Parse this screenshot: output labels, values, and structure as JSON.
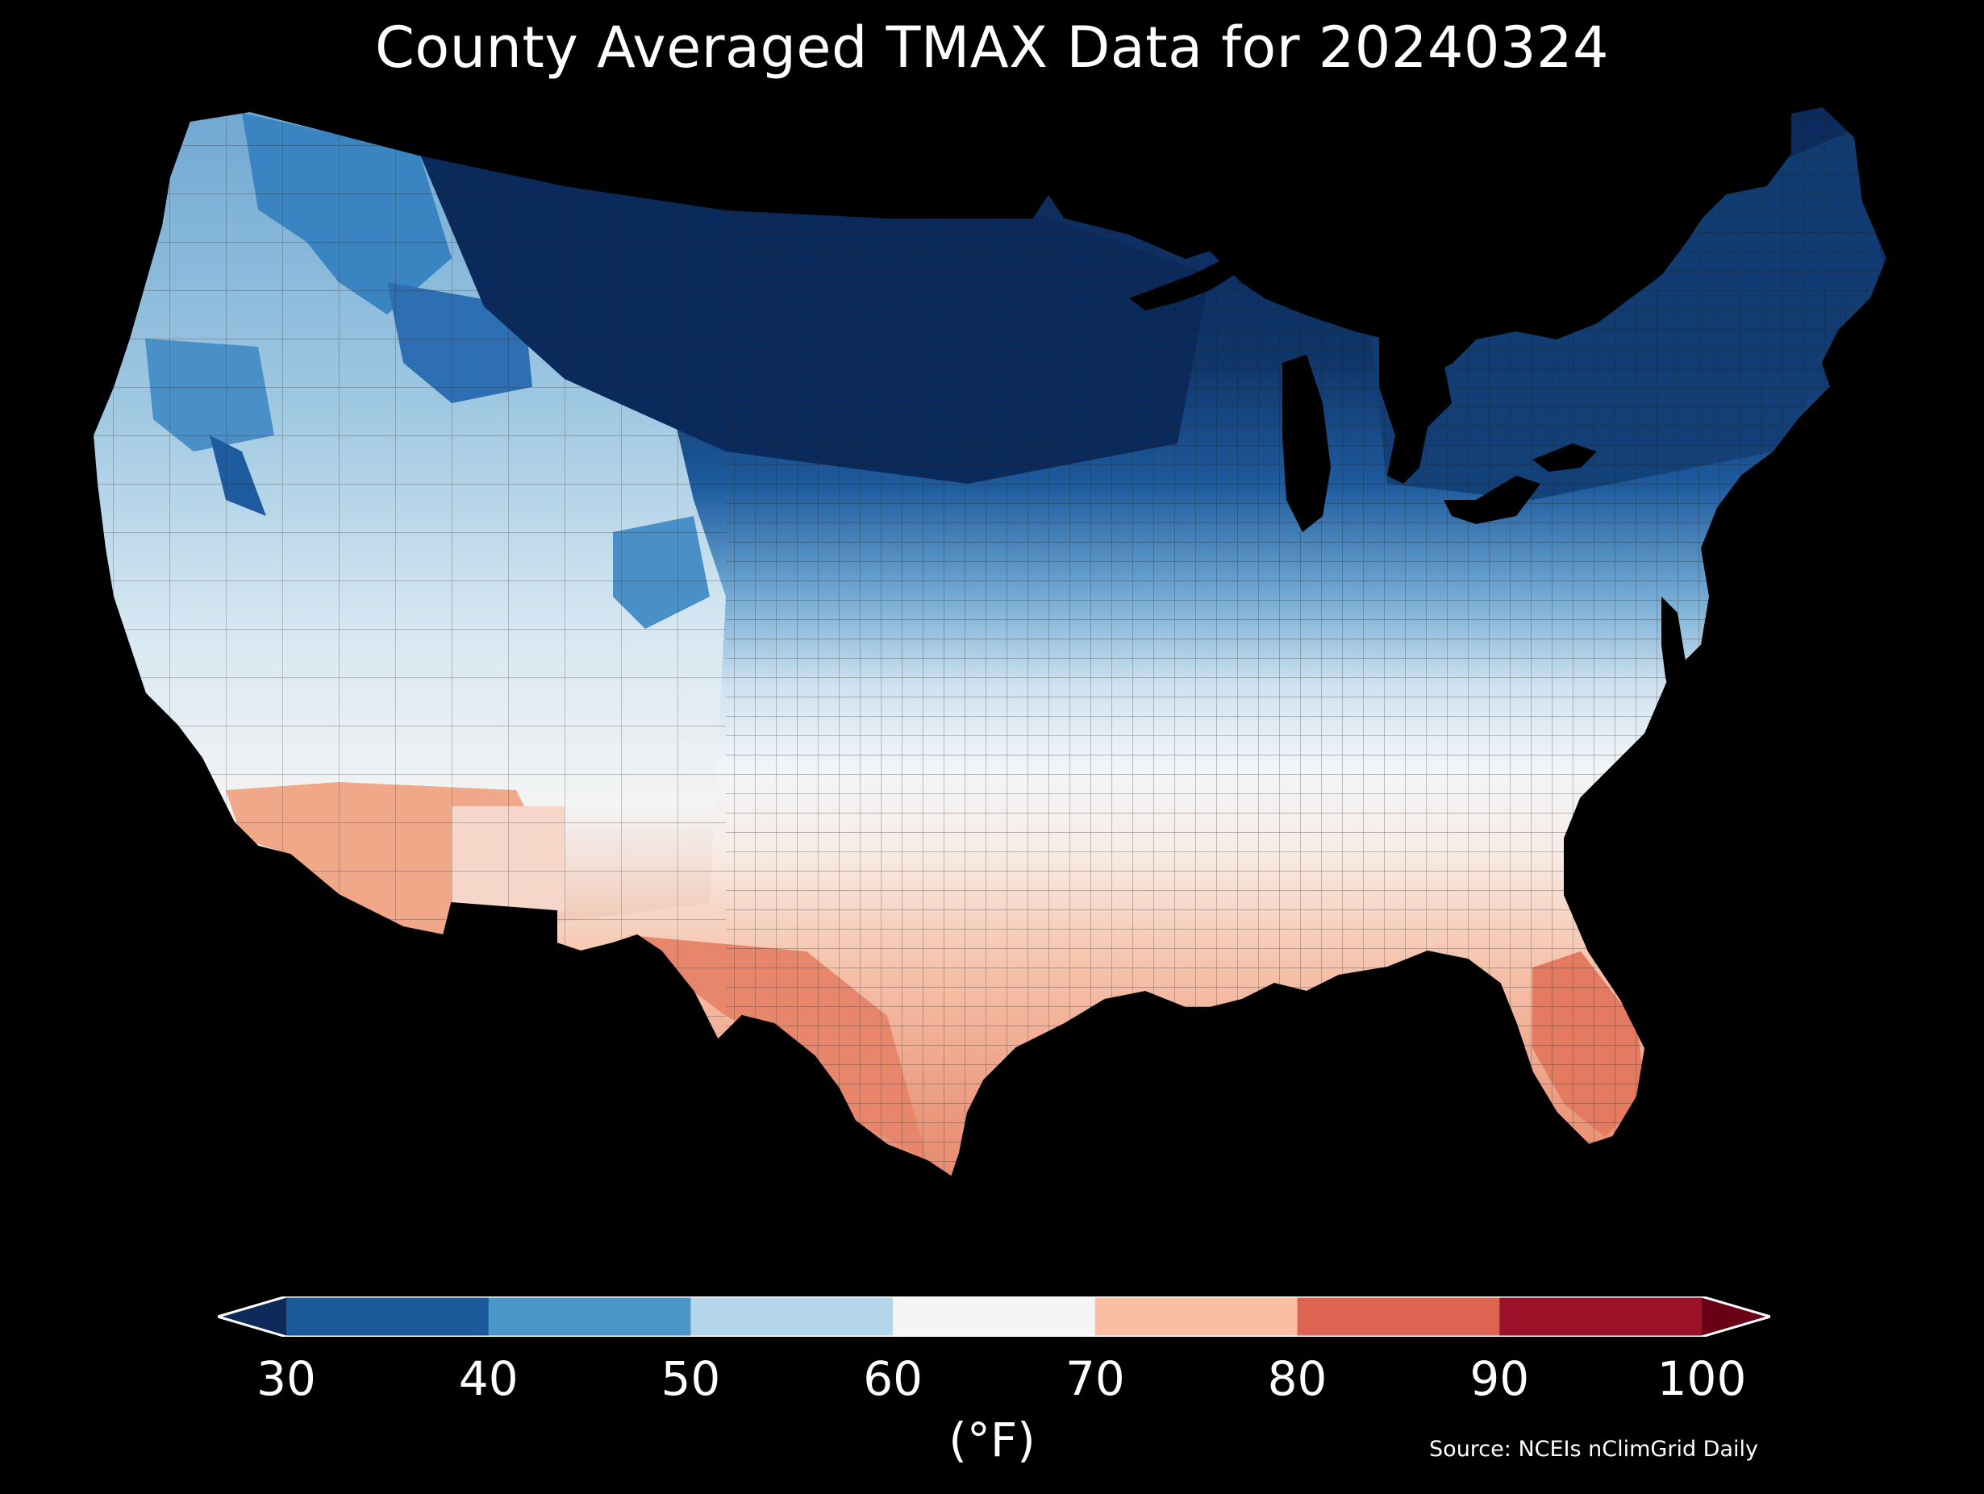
{
  "title": "County Averaged TMAX Data for 20240324",
  "colors": {
    "background": "#000000",
    "text": "#ffffff"
  },
  "colorbar": {
    "ticks": [
      "30",
      "40",
      "50",
      "60",
      "70",
      "80",
      "90",
      "100"
    ],
    "bins": [
      {
        "from": 30,
        "to": 40,
        "color": "#1c5a9c"
      },
      {
        "from": 40,
        "to": 50,
        "color": "#4a96c8"
      },
      {
        "from": 50,
        "to": 60,
        "color": "#b5d6ea"
      },
      {
        "from": 60,
        "to": 70,
        "color": "#f5f5f5"
      },
      {
        "from": 70,
        "to": 80,
        "color": "#f9bea4"
      },
      {
        "from": 80,
        "to": 90,
        "color": "#dc6450"
      },
      {
        "from": 90,
        "to": 100,
        "color": "#9b1127"
      }
    ],
    "under_color": "#0d2a5a",
    "over_color": "#6a0015",
    "unit": "(°F)"
  },
  "map_regions": [
    {
      "region": "north-central",
      "color": "#0b2a5c"
    },
    {
      "region": "northeast",
      "color": "#123e74"
    },
    {
      "region": "great-lakes",
      "color": "#1a4f8c"
    },
    {
      "region": "northwest-interior",
      "color": "#3a82c0"
    },
    {
      "region": "pacific-northwest",
      "color": "#7ab4d8"
    },
    {
      "region": "great-basin",
      "color": "#a8cce4"
    },
    {
      "region": "central-plains",
      "color": "#dce9f3"
    },
    {
      "region": "midwest-south",
      "color": "#eef3f8"
    },
    {
      "region": "mid-atlantic",
      "color": "#f7f0ec"
    },
    {
      "region": "southwest-desert",
      "color": "#f2a888"
    },
    {
      "region": "gulf-coast",
      "color": "#f4b59a"
    },
    {
      "region": "south-texas",
      "color": "#e58a70"
    },
    {
      "region": "florida",
      "color": "#e47f66"
    }
  ],
  "source": "Source: NCEIs nClimGrid Daily"
}
